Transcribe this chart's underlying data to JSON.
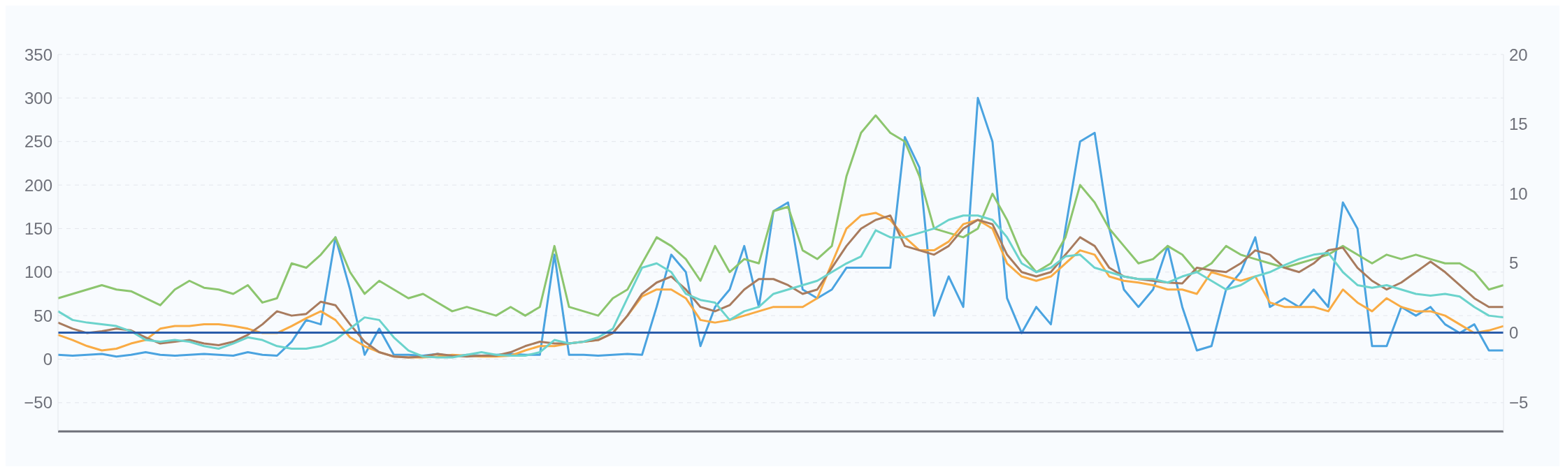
{
  "chart_data": {
    "type": "line",
    "categories": [
      null,
      null,
      null,
      null,
      null,
      null,
      null,
      null,
      null,
      null,
      null,
      null,
      null,
      null,
      null,
      null,
      null,
      null,
      null,
      null,
      null,
      null,
      null,
      null,
      null,
      null,
      null,
      null,
      null,
      null,
      null,
      null,
      null,
      null,
      null,
      null,
      null,
      null,
      null,
      null,
      null,
      null,
      null,
      null,
      null,
      null,
      null,
      null,
      null,
      null,
      null,
      null,
      null,
      null,
      null,
      null,
      null,
      null,
      null,
      null,
      null,
      null,
      null,
      null,
      null,
      null,
      null,
      null,
      null,
      null,
      null,
      null,
      null,
      null,
      null,
      null,
      null,
      null,
      null,
      null,
      null,
      null,
      null,
      null,
      null,
      null,
      null,
      null,
      null,
      null,
      null,
      null,
      null,
      null,
      null,
      null,
      null,
      null,
      null,
      null
    ],
    "series": [
      {
        "color": "#4aa3e0",
        "values": [
          5,
          4,
          5,
          6,
          3,
          5,
          8,
          5,
          4,
          5,
          6,
          5,
          4,
          8,
          5,
          4,
          20,
          45,
          40,
          140,
          80,
          5,
          35,
          5,
          5,
          4,
          6,
          3,
          5,
          4,
          5,
          6,
          5,
          5,
          120,
          5,
          5,
          4,
          5,
          6,
          5,
          60,
          120,
          100,
          15,
          60,
          80,
          130,
          60,
          170,
          180,
          80,
          70,
          80,
          105,
          105,
          105,
          105,
          255,
          220,
          50,
          95,
          60,
          300,
          250,
          70,
          30,
          60,
          40,
          150,
          250,
          260,
          150,
          80,
          60,
          80,
          130,
          60,
          10,
          15,
          80,
          100,
          140,
          60,
          70,
          60,
          80,
          60,
          180,
          150,
          15,
          15,
          60,
          50,
          60,
          40,
          30,
          40,
          10,
          10
        ]
      },
      {
        "color": "#8cc56e",
        "values": [
          70,
          75,
          80,
          85,
          80,
          78,
          70,
          62,
          80,
          90,
          82,
          80,
          75,
          85,
          65,
          70,
          110,
          105,
          120,
          140,
          100,
          75,
          90,
          80,
          70,
          75,
          65,
          55,
          60,
          55,
          50,
          60,
          50,
          60,
          130,
          60,
          55,
          50,
          70,
          80,
          110,
          140,
          130,
          115,
          90,
          130,
          100,
          115,
          110,
          170,
          175,
          125,
          115,
          130,
          210,
          260,
          280,
          260,
          250,
          210,
          150,
          145,
          140,
          150,
          190,
          160,
          120,
          100,
          110,
          140,
          200,
          180,
          150,
          130,
          110,
          115,
          130,
          120,
          100,
          110,
          130,
          120,
          115,
          110,
          105,
          110,
          115,
          120,
          130,
          120,
          110,
          120,
          115,
          120,
          115,
          110,
          110,
          100,
          80,
          85
        ]
      },
      {
        "color": "#f9ab44",
        "values": [
          28,
          22,
          15,
          10,
          12,
          18,
          22,
          35,
          38,
          38,
          40,
          40,
          38,
          35,
          30,
          30,
          38,
          47,
          55,
          45,
          25,
          15,
          8,
          3,
          2,
          2,
          3,
          5,
          4,
          3,
          3,
          4,
          10,
          15,
          15,
          18,
          20,
          22,
          30,
          50,
          72,
          80,
          80,
          70,
          45,
          42,
          45,
          50,
          55,
          60,
          60,
          60,
          70,
          110,
          150,
          165,
          168,
          160,
          140,
          125,
          125,
          135,
          155,
          160,
          150,
          110,
          95,
          90,
          95,
          110,
          125,
          120,
          95,
          90,
          88,
          85,
          80,
          80,
          75,
          100,
          95,
          90,
          95,
          65,
          60,
          60,
          60,
          55,
          80,
          65,
          55,
          70,
          60,
          55,
          55,
          50,
          40,
          30,
          33,
          38
        ]
      },
      {
        "color": "#a87b5e",
        "values": [
          42,
          35,
          30,
          32,
          35,
          33,
          25,
          18,
          20,
          22,
          18,
          16,
          20,
          28,
          40,
          55,
          50,
          52,
          66,
          62,
          40,
          20,
          8,
          3,
          2,
          3,
          6,
          4,
          3,
          4,
          4,
          8,
          15,
          20,
          18,
          18,
          20,
          22,
          30,
          50,
          75,
          88,
          95,
          80,
          60,
          55,
          62,
          80,
          92,
          92,
          85,
          75,
          80,
          105,
          130,
          150,
          160,
          165,
          130,
          125,
          120,
          130,
          150,
          160,
          155,
          120,
          100,
          95,
          100,
          120,
          140,
          130,
          105,
          95,
          92,
          90,
          88,
          87,
          105,
          102,
          100,
          110,
          125,
          120,
          105,
          100,
          110,
          125,
          128,
          105,
          90,
          80,
          88,
          100,
          112,
          100,
          85,
          70,
          60,
          60
        ]
      },
      {
        "color": "#6bd3cc",
        "values": [
          55,
          45,
          42,
          40,
          38,
          32,
          22,
          20,
          22,
          20,
          15,
          12,
          18,
          25,
          22,
          15,
          12,
          12,
          15,
          22,
          35,
          48,
          45,
          25,
          10,
          3,
          2,
          2,
          5,
          8,
          5,
          4,
          4,
          8,
          22,
          18,
          20,
          25,
          35,
          70,
          105,
          110,
          100,
          75,
          68,
          65,
          45,
          55,
          60,
          75,
          80,
          85,
          90,
          100,
          110,
          118,
          148,
          140,
          140,
          145,
          150,
          160,
          165,
          165,
          160,
          140,
          110,
          100,
          105,
          118,
          120,
          105,
          100,
          95,
          92,
          92,
          88,
          95,
          100,
          90,
          80,
          85,
          95,
          100,
          108,
          115,
          120,
          122,
          100,
          85,
          82,
          85,
          80,
          75,
          73,
          75,
          72,
          60,
          50,
          48
        ]
      },
      {
        "color": "#2a5caa",
        "axis": "y2",
        "values": [
          0,
          0,
          0,
          0,
          0,
          0,
          0,
          0,
          0,
          0,
          0,
          0,
          0,
          0,
          0,
          0,
          0,
          0,
          0,
          0,
          0,
          0,
          0,
          0,
          0,
          0,
          0,
          0,
          0,
          0,
          0,
          0,
          0,
          0,
          0,
          0,
          0,
          0,
          0,
          0,
          0,
          0,
          0,
          0,
          0,
          0,
          0,
          0,
          0,
          0,
          0,
          0,
          0,
          0,
          0,
          0,
          0,
          0,
          0,
          0,
          0,
          0,
          0,
          0,
          0,
          0,
          0,
          0,
          0,
          0,
          0,
          0,
          0,
          0,
          0,
          0,
          0,
          0,
          0,
          0,
          0,
          0,
          0,
          0,
          0,
          0,
          0,
          0,
          0,
          0,
          0,
          0,
          0,
          0,
          0,
          0,
          0,
          0,
          0,
          0
        ]
      }
    ],
    "ylim": [
      -83,
      350
    ],
    "yticks": [
      -50,
      0,
      50,
      100,
      150,
      200,
      250,
      300,
      350
    ],
    "y2lim": [
      -7.1,
      20
    ],
    "y2ticks": [
      -5,
      0,
      5,
      10,
      15,
      20
    ],
    "grid": "y",
    "tick_labels": "y",
    "marker": "none",
    "line_style": "solid"
  }
}
